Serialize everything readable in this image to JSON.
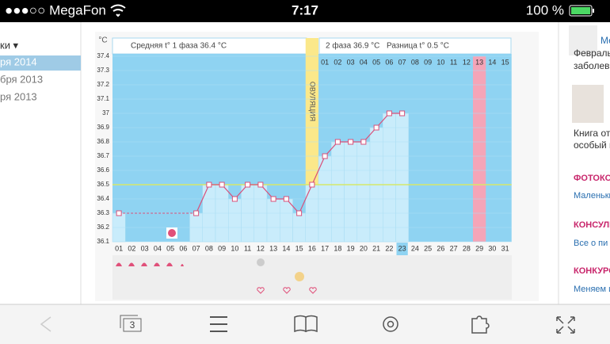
{
  "status_bar": {
    "carrier": "●●●○○ MegaFon",
    "time": "7:17",
    "battery": "100 %"
  },
  "sidebar": {
    "menu": "ки ▾",
    "items": [
      "ря 2014",
      "бря 2013",
      "ря 2013"
    ]
  },
  "chart_data": {
    "type": "line",
    "unit": "°C",
    "phase1": "Средняя t° 1 фаза 36.4 °C",
    "phase2": "2 фаза 36.9 °C",
    "difference": "Разница t° 0.5 °C",
    "ovulation": "ОВУЛЯЦИЯ",
    "categories": [
      "01",
      "02",
      "03",
      "04",
      "05",
      "06",
      "07",
      "08",
      "09",
      "10",
      "11",
      "12",
      "13",
      "14",
      "15",
      "16",
      "17",
      "18",
      "19",
      "20",
      "21",
      "22",
      "23",
      "24",
      "25",
      "26",
      "27",
      "28",
      "29",
      "30",
      "31"
    ],
    "cycle_days": [
      "01",
      "02",
      "03",
      "04",
      "05",
      "06",
      "07",
      "08",
      "09",
      "10",
      "11",
      "12",
      "13",
      "14",
      "15"
    ],
    "series": [
      {
        "color": "#d9507a",
        "values": [
          36.3,
          null,
          null,
          null,
          null,
          null,
          36.3,
          36.5,
          36.5,
          36.4,
          36.5,
          36.5,
          36.4,
          36.4,
          36.3,
          36.5,
          36.7,
          36.8,
          36.8,
          36.8,
          36.9,
          37,
          37,
          null,
          null,
          null,
          null,
          null,
          null,
          null,
          null
        ]
      }
    ],
    "cover_line": 36.5,
    "ylim": [
      36.1,
      37.4
    ],
    "yticks": [
      36.1,
      36.2,
      36.3,
      36.4,
      36.5,
      36.6,
      36.7,
      36.8,
      36.9,
      37,
      37.1,
      37.2,
      37.3,
      37.4
    ]
  },
  "right_panel": [
    "Ме",
    "Февраль",
    "заболев",
    "Книга от",
    "особый м",
    "ФОТОКО",
    "Маленьки",
    "КОНСУЛЬ",
    "Все о пи",
    "КОНКУРО",
    "Меняем и"
  ],
  "toolbar": {
    "tabs": "3"
  }
}
